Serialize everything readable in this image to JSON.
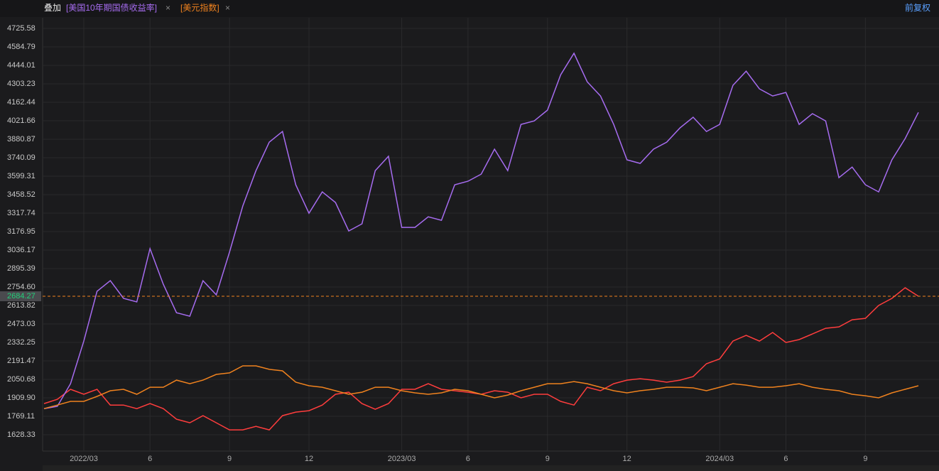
{
  "header": {
    "overlay": "叠加",
    "adjust": "前复权"
  },
  "chart_data": {
    "type": "line",
    "categories": [
      null,
      null,
      null,
      "2022/03",
      null,
      null,
      null,
      null,
      "6",
      null,
      null,
      null,
      null,
      null,
      "9",
      null,
      null,
      null,
      null,
      null,
      "12",
      null,
      null,
      null,
      null,
      null,
      null,
      "2023/03",
      null,
      null,
      null,
      null,
      "6",
      null,
      null,
      null,
      null,
      null,
      "9",
      null,
      null,
      null,
      null,
      null,
      "12",
      null,
      null,
      null,
      null,
      null,
      null,
      "2024/03",
      null,
      null,
      null,
      null,
      "6",
      null,
      null,
      null,
      null,
      null,
      "9",
      null,
      null,
      null,
      null
    ],
    "series": [
      {
        "color": "#ff3d3d",
        "values": [
          1866,
          1899,
          1975,
          1937,
          1975,
          1855,
          1855,
          1828,
          1866,
          1828,
          1747,
          1720,
          1774,
          1720,
          1666,
          1666,
          1693,
          1666,
          1774,
          1801,
          1812,
          1855,
          1937,
          1953,
          1866,
          1823,
          1866,
          1975,
          1975,
          2018,
          1975,
          1964,
          1953,
          1937,
          1964,
          1953,
          1910,
          1937,
          1937,
          1883,
          1855,
          1991,
          1964,
          2018,
          2045,
          2056,
          2045,
          2029,
          2045,
          2072,
          2170,
          2207,
          2343,
          2386,
          2343,
          2408,
          2332,
          2354,
          2397,
          2440,
          2451,
          2505,
          2516,
          2614,
          2668,
          2749,
          2684.27
        ]
      },
      {
        "name": "[美国10年期国债收益率]",
        "color": "#a66cf0",
        "values": [
          1828,
          1845,
          2018,
          2343,
          2722,
          2803,
          2668,
          2641,
          3047,
          2776,
          2559,
          2532,
          2803,
          2695,
          3020,
          3372,
          3642,
          3859,
          3940,
          3534,
          3317,
          3480,
          3399,
          3182,
          3236,
          3642,
          3751,
          3209,
          3209,
          3290,
          3263,
          3534,
          3561,
          3615,
          3805,
          3642,
          3994,
          4021,
          4103,
          4373,
          4536,
          4319,
          4211,
          3994,
          3724,
          3697,
          3805,
          3859,
          3967,
          4049,
          3940,
          3994,
          4292,
          4400,
          4265,
          4211,
          4238,
          3994,
          4076,
          4021,
          3588,
          3669,
          3534,
          3480,
          3724,
          3886,
          4086
        ]
      },
      {
        "name": "[美元指数]",
        "color": "#f0821e",
        "values": [
          1828,
          1855,
          1883,
          1883,
          1921,
          1964,
          1975,
          1937,
          1991,
          1991,
          2045,
          2018,
          2045,
          2089,
          2100,
          2154,
          2154,
          2127,
          2116,
          2029,
          2002,
          1991,
          1964,
          1937,
          1953,
          1991,
          1991,
          1964,
          1948,
          1937,
          1948,
          1975,
          1964,
          1937,
          1910,
          1931,
          1964,
          1991,
          2018,
          2018,
          2034,
          2018,
          1991,
          1964,
          1948,
          1964,
          1975,
          1991,
          1991,
          1986,
          1964,
          1991,
          2018,
          2007,
          1991,
          1991,
          2002,
          2018,
          1991,
          1975,
          1964,
          1937,
          1926,
          1910,
          1948,
          1975,
          2002
        ]
      }
    ],
    "ylim": [
      1504,
      4807
    ],
    "yticks": [
      4725.58,
      4584.79,
      4444.01,
      4303.23,
      4162.44,
      4021.66,
      3880.87,
      3740.09,
      3599.31,
      3458.52,
      3317.74,
      3176.95,
      3036.17,
      2895.39,
      {
        "value": 2754.6,
        "label": "2754.60"
      },
      2613.82,
      2473.03,
      2332.25,
      2191.47,
      2050.68,
      {
        "value": 1909.9,
        "label": "1909.90"
      },
      1769.11,
      1628.33
    ],
    "current": 2684.27,
    "grid": true
  }
}
